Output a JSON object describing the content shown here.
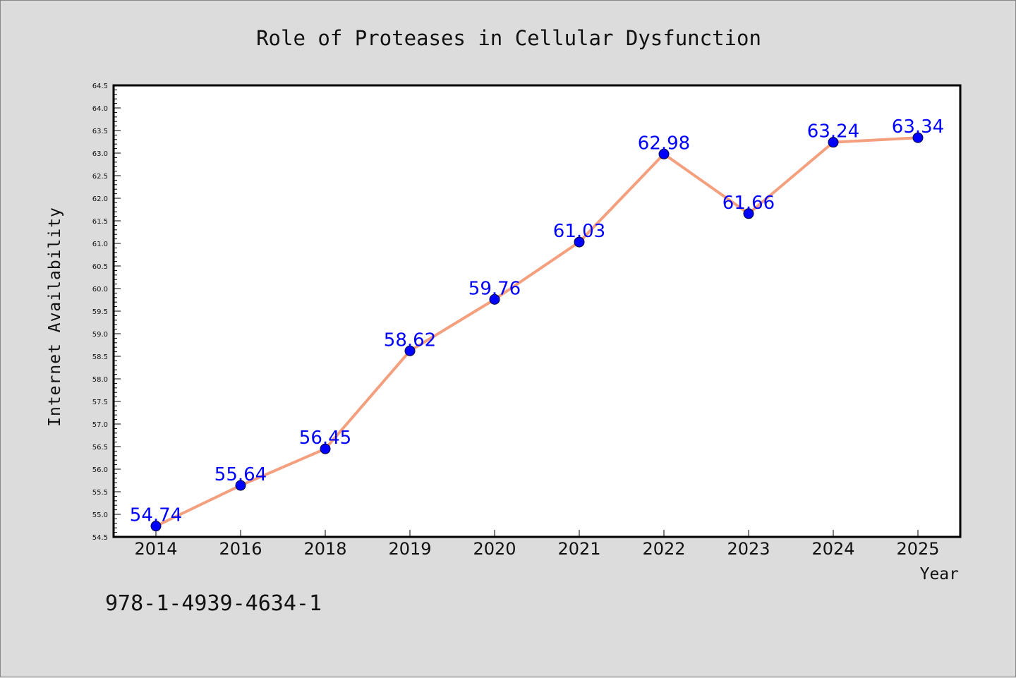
{
  "chart_data": {
    "type": "line",
    "title": "Role of Proteases in Cellular Dysfunction",
    "xlabel": "Year",
    "ylabel": "Internet Availability",
    "categories": [
      "2014",
      "2016",
      "2018",
      "2019",
      "2020",
      "2021",
      "2022",
      "2023",
      "2024",
      "2025"
    ],
    "series": [
      {
        "values": [
          54.74,
          55.64,
          56.45,
          58.62,
          59.76,
          61.03,
          62.98,
          61.66,
          63.24,
          63.34
        ],
        "labels": [
          "54.74",
          "55.64",
          "56.45",
          "58.62",
          "59.76",
          "61.03",
          "62.98",
          "61.66",
          "63.24",
          "63.34"
        ]
      }
    ],
    "ylim": [
      54.5,
      64.5
    ],
    "yticks": [
      "54.5",
      "55.0",
      "55.5",
      "56.0",
      "56.5",
      "57.0",
      "57.5",
      "58.0",
      "58.5",
      "59.0",
      "59.5",
      "60.0",
      "60.5",
      "61.0",
      "61.5",
      "62.0",
      "62.5",
      "63.0",
      "63.5",
      "64.0",
      "64.5"
    ],
    "grid": false,
    "colors": {
      "line": "#f4a07e",
      "marker": "#0000ff",
      "label": "#0000ff",
      "background": "#dcdcdc",
      "plot_area": "#ffffff"
    }
  },
  "footer": {
    "isbn": "978-1-4939-4634-1"
  }
}
